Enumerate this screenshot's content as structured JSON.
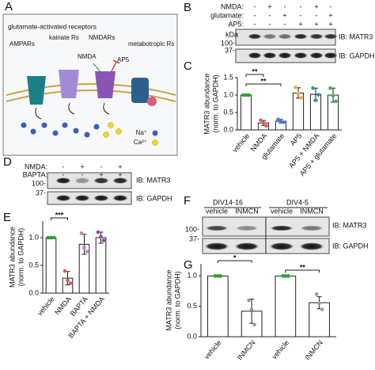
{
  "panel_labels": [
    "A",
    "B",
    "C",
    "D",
    "E",
    "F",
    "G"
  ],
  "diagram": {
    "title": "glutamate-activated receptors",
    "receptors": [
      "AMPARs",
      "kainate Rs",
      "NMDARs",
      "metabotropic Rs"
    ],
    "agonist": "NMDA",
    "antagonist": "AP5",
    "ions": [
      "Na⁺",
      "Ca²⁺"
    ]
  },
  "blot_b": {
    "rows": [
      {
        "label": "NMDA:",
        "signs": [
          "-",
          "+",
          "-",
          "-",
          "+",
          "-"
        ]
      },
      {
        "label": "glutamate:",
        "signs": [
          "-",
          "-",
          "+",
          "-",
          "-",
          "+"
        ]
      },
      {
        "label": "AP5:",
        "signs": [
          "-",
          "-",
          "-",
          "+",
          "+",
          "+"
        ]
      }
    ],
    "kda": "kDa",
    "markers": [
      "100-",
      "37-"
    ],
    "probes": [
      "IB: MATR3",
      "IB: GAPDH"
    ]
  },
  "blot_d": {
    "rows": [
      {
        "label": "NMDA:",
        "signs": [
          "-",
          "+",
          "-",
          "+"
        ]
      },
      {
        "label": "BAPTA:",
        "signs": [
          "-",
          "-",
          "+",
          "+"
        ]
      }
    ],
    "markers": [
      "100-",
      "37-"
    ],
    "probes": [
      "IB: MATR3",
      "IB: GAPDH"
    ]
  },
  "blot_f": {
    "groups": [
      "DIV14-16",
      "DIV4-5"
    ],
    "lanes": [
      "vehicle",
      "INMCN",
      "vehicle",
      "INMCN"
    ],
    "markers": [
      "100-",
      "37-"
    ],
    "probes": [
      "IB: MATR3",
      "IB: GAPDH"
    ]
  },
  "chart_data": [
    {
      "type": "bar",
      "y_label": [
        "MATR3 abundance",
        "(norm. to GAPDH)"
      ],
      "categories": [
        "vehicle",
        "NMDA",
        "glutamate",
        "AP5",
        "AP5 + NMDA",
        "AP5 + glutamate"
      ],
      "values": [
        1.0,
        0.2,
        0.25,
        1.06,
        1.02,
        1.0
      ],
      "errors": [
        0,
        0.07,
        0.05,
        0.15,
        0.18,
        0.2
      ],
      "points": [
        [
          1,
          1,
          1
        ],
        [
          0.28,
          0.2,
          0.12
        ],
        [
          0.3,
          0.23,
          0.22
        ],
        [
          1.22,
          1.04,
          0.92
        ],
        [
          1.2,
          0.85,
          1.01
        ],
        [
          1.2,
          0.98,
          0.82
        ]
      ],
      "point_colors": [
        "#2ca02c",
        "#e05a4f",
        "#3a7fd5",
        "#f2a93b",
        "#1a9e9e",
        "#3cb44b"
      ],
      "significance": [
        {
          "label": "**",
          "between": [
            0,
            1
          ]
        },
        {
          "label": "**",
          "between": [
            0,
            2
          ]
        }
      ],
      "ylim": [
        0,
        1.5
      ],
      "yticks": [
        {
          "value": 0,
          "label": "0.0"
        },
        {
          "value": 0.5,
          "label": "0.5"
        },
        {
          "value": 1,
          "label": "1.0"
        },
        {
          "value": 1.5,
          "label": "1.5"
        }
      ]
    },
    {
      "type": "bar",
      "y_label": [
        "MATR3 abundance",
        "(norm. to GAPDH)"
      ],
      "categories": [
        "vehicle",
        "NMDA",
        "BAPTA",
        "BAPTA + NMDA"
      ],
      "values": [
        1.0,
        0.27,
        0.88,
        1.0
      ],
      "errors": [
        0,
        0.12,
        0.18,
        0.1
      ],
      "points": [
        [
          1,
          1,
          1
        ],
        [
          0.4,
          0.23,
          0.18
        ],
        [
          1.08,
          0.82,
          0.75
        ],
        [
          1.1,
          1.02,
          0.95
        ]
      ],
      "point_colors": [
        "#2ca02c",
        "#e05a4f",
        "#c879c8",
        "#8e44ad"
      ],
      "significance": [
        {
          "label": "***",
          "between": [
            0,
            1
          ]
        }
      ],
      "ylim": [
        0,
        1.3
      ],
      "yticks": [
        {
          "value": 0,
          "label": "0.0"
        },
        {
          "value": 0.5,
          "label": "0.5"
        },
        {
          "value": 1,
          "label": "1.0"
        }
      ]
    },
    {
      "type": "bar",
      "y_label": [
        "MATR3 abundance",
        "(norm. to GAPDH)"
      ],
      "categories": [
        "vehicle",
        "INMCN",
        "vehicle",
        "INMCN"
      ],
      "values": [
        1.0,
        0.42,
        1.0,
        0.56
      ],
      "errors": [
        0,
        0.2,
        0,
        0.1
      ],
      "points": [
        [
          1,
          1,
          1
        ],
        [
          0.6,
          0.45,
          0.2
        ],
        [
          1,
          1,
          1
        ],
        [
          0.7,
          0.55,
          0.45
        ]
      ],
      "point_colors": [
        "#2ca02c",
        "#999999",
        "#2ca02c",
        "#999999"
      ],
      "significance": [
        {
          "label": "*",
          "between": [
            0,
            1
          ]
        },
        {
          "label": "**",
          "between": [
            2,
            3
          ]
        }
      ],
      "ylim": [
        0,
        1.2
      ],
      "yticks": [
        {
          "value": 0,
          "label": "0.0"
        },
        {
          "value": 0.5,
          "label": "0.5"
        },
        {
          "value": 1,
          "label": "1.0"
        }
      ]
    }
  ]
}
